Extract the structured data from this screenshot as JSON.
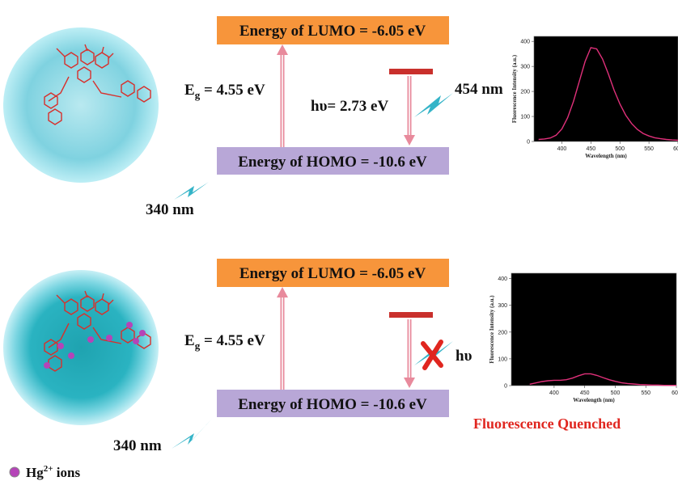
{
  "panels": [
    {
      "lumo": "Energy of LUMO = -6.05 eV",
      "homo": "Energy of HOMO =  -10.6 eV",
      "gap": {
        "symbol": "E",
        "subscript": "g",
        "value": " = 4.55 eV"
      },
      "emission": "hυ= 2.73 eV",
      "emission_wavelength": "454 nm",
      "excitation": "340 nm",
      "spectrum": {
        "type": "line",
        "x_label": "Wavelength (nm)",
        "y_label": "Fluorescence Intensity (a.u.)",
        "color": "#e0307a",
        "x": [
          360,
          370,
          380,
          390,
          400,
          410,
          420,
          430,
          440,
          450,
          460,
          470,
          480,
          490,
          500,
          510,
          520,
          530,
          540,
          550,
          560,
          570,
          580,
          590,
          600
        ],
        "values": [
          8,
          10,
          14,
          25,
          50,
          95,
          160,
          240,
          320,
          375,
          370,
          330,
          270,
          205,
          150,
          105,
          72,
          48,
          32,
          22,
          15,
          11,
          8,
          6,
          5
        ],
        "xlim": [
          352,
          600
        ],
        "ylim": [
          0,
          420
        ],
        "xticks": [
          400,
          450,
          500,
          550,
          600
        ],
        "yticks": [
          0,
          100,
          200,
          300,
          400
        ]
      }
    },
    {
      "lumo": "Energy of LUMO = -6.05 eV",
      "homo": "Energy of HOMO =  -10.6 eV",
      "gap": {
        "symbol": "E",
        "subscript": "g",
        "value": " = 4.55 eV"
      },
      "emission": "hυ",
      "excitation": "340 nm",
      "spectrum": {
        "type": "line",
        "x_label": "Wavelength (nm)",
        "y_label": "Fluorescence Intensity (a.u.)",
        "color": "#e0307a",
        "x": [
          360,
          370,
          380,
          390,
          400,
          410,
          420,
          430,
          440,
          450,
          460,
          470,
          480,
          490,
          500,
          510,
          520,
          530,
          540,
          550,
          560,
          570,
          580,
          590,
          600
        ],
        "values": [
          5,
          10,
          15,
          18,
          20,
          20,
          22,
          28,
          37,
          44,
          44,
          38,
          30,
          22,
          16,
          11,
          8,
          6,
          4,
          3,
          2,
          2,
          1,
          1,
          1
        ],
        "xlim": [
          330,
          600
        ],
        "ylim": [
          0,
          420
        ],
        "xticks": [
          400,
          450,
          500,
          550,
          600
        ],
        "yticks": [
          0,
          100,
          200,
          300,
          400
        ]
      }
    }
  ],
  "status": "Fluorescence Quenched",
  "legend": {
    "label": "Hg",
    "superscript": "2+",
    "suffix": " ions"
  }
}
